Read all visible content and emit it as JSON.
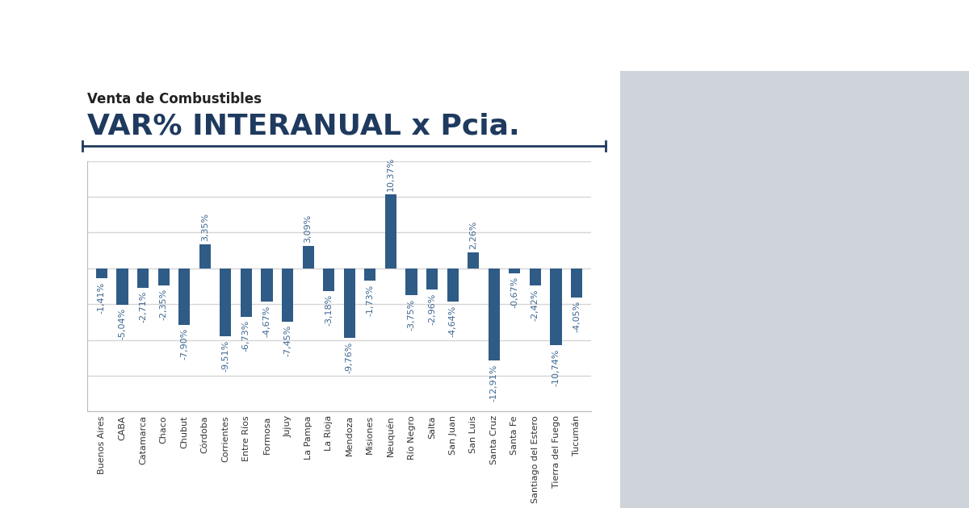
{
  "chart_data": {
    "type": "bar",
    "subtitle": "Venta de Combustibles",
    "title": "VAR% INTERANUAL x Pcia.",
    "categories": [
      "Buenos Aires",
      "CABA",
      "Catamarca",
      "Chaco",
      "Chubut",
      "Córdoba",
      "Corrientes",
      "Entre Ríos",
      "Formosa",
      "Jujuy",
      "La Pampa",
      "La Rioja",
      "Mendoza",
      "Misiones",
      "Neuquén",
      "Río Negro",
      "Salta",
      "San Juan",
      "San Luis",
      "Santa Cruz",
      "Santa Fe",
      "Santiago del Estero",
      "Tierra del Fuego",
      "Tucumán"
    ],
    "values": [
      -1.41,
      -5.04,
      -2.71,
      -2.35,
      -7.9,
      3.35,
      -9.51,
      -6.73,
      -4.67,
      -7.45,
      3.09,
      -3.18,
      -9.76,
      -1.73,
      10.37,
      -3.75,
      -2.96,
      -4.64,
      2.26,
      -12.91,
      -0.67,
      -2.42,
      -10.74,
      -4.05
    ],
    "value_labels": [
      "-1,41%",
      "-5,04%",
      "-2,71%",
      "-2,35%",
      "-7,90%",
      "3,35%",
      "-9,51%",
      "-6,73%",
      "-4,67%",
      "-7,45%",
      "3,09%",
      "-3,18%",
      "-9,76%",
      "-1,73%",
      "10,37%",
      "-3,75%",
      "-2,96%",
      "-4,64%",
      "2,26%",
      "-12,91%",
      "-0,67%",
      "-2,42%",
      "-10,74%",
      "-4,05%"
    ],
    "color": "#2f5b87",
    "ylim": [
      -20,
      15
    ],
    "yticks": [
      -20,
      -15,
      -10,
      -5,
      0,
      5,
      10,
      15
    ],
    "grid": true,
    "data_labels": true,
    "tick_labels": "x"
  }
}
